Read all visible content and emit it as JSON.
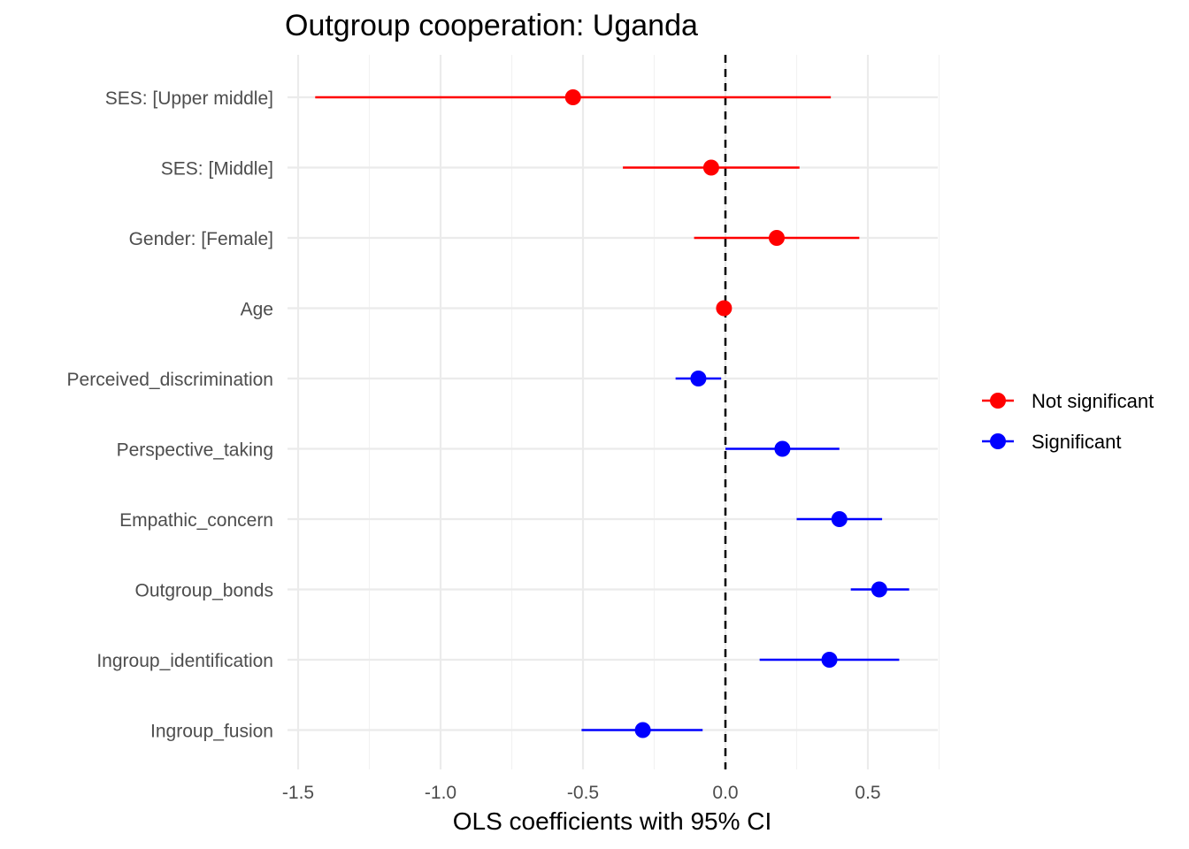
{
  "chart_data": {
    "type": "scatter",
    "title": "Outgroup cooperation: Uganda",
    "xlabel": "OLS coefficients with 95% CI",
    "ylabel": "",
    "xlim": [
      -1.5,
      0.75
    ],
    "x_ticks": [
      -1.5,
      -1.0,
      -0.5,
      0.0,
      0.5
    ],
    "x_tick_labels": [
      "-1.5",
      "-1.0",
      "-0.5",
      "0.0",
      "0.5"
    ],
    "grid": true,
    "reference_line": {
      "x": 0,
      "style": "dashed"
    },
    "legend": {
      "position": "right",
      "entries": [
        {
          "label": "Not significant",
          "color": "#ff0000"
        },
        {
          "label": "Significant",
          "color": "#0000ff"
        }
      ]
    },
    "terms": [
      {
        "label": "SES:  [Upper middle]",
        "estimate": -0.535,
        "ci_low": -1.44,
        "ci_high": 0.37,
        "group": "Not significant"
      },
      {
        "label": "SES:  [Middle]",
        "estimate": -0.05,
        "ci_low": -0.36,
        "ci_high": 0.26,
        "group": "Not significant"
      },
      {
        "label": "Gender:  [Female]",
        "estimate": 0.18,
        "ci_low": -0.11,
        "ci_high": 0.47,
        "group": "Not significant"
      },
      {
        "label": "Age",
        "estimate": -0.005,
        "ci_low": -0.01,
        "ci_high": 0.0,
        "group": "Not significant"
      },
      {
        "label": "Perceived_discrimination",
        "estimate": -0.095,
        "ci_low": -0.175,
        "ci_high": -0.015,
        "group": "Significant"
      },
      {
        "label": "Perspective_taking",
        "estimate": 0.2,
        "ci_low": 0.0,
        "ci_high": 0.4,
        "group": "Significant"
      },
      {
        "label": "Empathic_concern",
        "estimate": 0.4,
        "ci_low": 0.25,
        "ci_high": 0.55,
        "group": "Significant"
      },
      {
        "label": "Outgroup_bonds",
        "estimate": 0.54,
        "ci_low": 0.44,
        "ci_high": 0.645,
        "group": "Significant"
      },
      {
        "label": "Ingroup_identification",
        "estimate": 0.365,
        "ci_low": 0.12,
        "ci_high": 0.61,
        "group": "Significant"
      },
      {
        "label": "Ingroup_fusion",
        "estimate": -0.29,
        "ci_low": -0.505,
        "ci_high": -0.08,
        "group": "Significant"
      }
    ]
  }
}
